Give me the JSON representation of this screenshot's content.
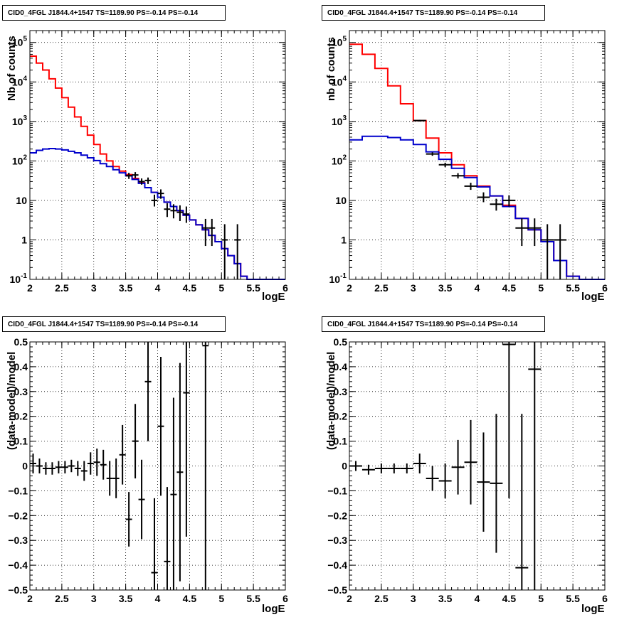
{
  "colors": {
    "data": "#000000",
    "total_model": "#ff0000",
    "source_model": "#0000cc"
  },
  "chart_data": [
    {
      "type": "line",
      "title": "CID0_4FGL J1844.4+1547 TS=1189.90 PS=-0.14 PS=-0.14",
      "xlabel": "logE",
      "ylabel": "Nb of counts",
      "xlim": [
        2,
        6
      ],
      "ylim": [
        0.1,
        200000
      ],
      "yscale": "log",
      "grid": true,
      "x_ticks": [
        "2",
        "2.5",
        "3",
        "3.5",
        "4",
        "4.5",
        "5",
        "5.5",
        "6"
      ],
      "y_ticks": [
        "10^-1",
        "1",
        "10",
        "10^2",
        "10^3",
        "10^4",
        "10^5"
      ],
      "bin_edges": [
        2.0,
        2.1,
        2.2,
        2.3,
        2.4,
        2.5,
        2.6,
        2.7,
        2.8,
        2.9,
        3.0,
        3.1,
        3.2,
        3.3,
        3.4,
        3.5,
        3.6,
        3.7,
        3.8,
        3.9,
        4.0,
        4.1,
        4.2,
        4.3,
        4.4,
        4.5,
        4.6,
        4.7,
        4.8,
        4.9,
        5.0,
        5.1,
        5.2,
        5.3,
        5.4,
        5.5,
        5.6,
        5.7,
        5.8,
        5.9,
        6.0
      ],
      "series": [
        {
          "name": "",
          "color": "#ff0000",
          "style": "step",
          "values": [
            45000,
            30000,
            20000,
            12000,
            7000,
            4000,
            2300,
            1300,
            750,
            450,
            260,
            150,
            100,
            72,
            55,
            45,
            36,
            28,
            21,
            16,
            12,
            9,
            7,
            5.5,
            4.2,
            3.2,
            2.4,
            1.8,
            1.3,
            0.9,
            0.6,
            0.4,
            0.25,
            0.12,
            0.1,
            0.1,
            0.1,
            0.1,
            0.1,
            0.1
          ]
        },
        {
          "name": "",
          "color": "#0000cc",
          "style": "step",
          "values": [
            160,
            185,
            200,
            205,
            200,
            190,
            175,
            160,
            140,
            120,
            102,
            85,
            72,
            60,
            50,
            42,
            34,
            27,
            21,
            16,
            12,
            9,
            7,
            5.5,
            4.2,
            3.2,
            2.4,
            1.8,
            1.3,
            0.9,
            0.6,
            0.4,
            0.25,
            0.12,
            0.1,
            0.1,
            0.1,
            0.1,
            0.1,
            0.1
          ]
        },
        {
          "name": "",
          "color": "#000000",
          "style": "points",
          "points": [
            {
              "x": 3.55,
              "y": 42,
              "lo": 35,
              "hi": 50
            },
            {
              "x": 3.65,
              "y": 44,
              "lo": 37,
              "hi": 52
            },
            {
              "x": 3.75,
              "y": 30,
              "lo": 25,
              "hi": 36
            },
            {
              "x": 3.85,
              "y": 32,
              "lo": 26,
              "hi": 38
            },
            {
              "x": 3.95,
              "y": 10,
              "lo": 7,
              "hi": 14
            },
            {
              "x": 4.05,
              "y": 15,
              "lo": 11,
              "hi": 19
            },
            {
              "x": 4.15,
              "y": 6,
              "lo": 3.8,
              "hi": 8.5
            },
            {
              "x": 4.25,
              "y": 5.5,
              "lo": 3.5,
              "hi": 8
            },
            {
              "x": 4.35,
              "y": 5,
              "lo": 3,
              "hi": 7.5
            },
            {
              "x": 4.45,
              "y": 4.5,
              "lo": 2.7,
              "hi": 7
            },
            {
              "x": 4.75,
              "y": 2,
              "lo": 0.7,
              "hi": 3.4
            },
            {
              "x": 4.85,
              "y": 2,
              "lo": 0.7,
              "hi": 3.4
            },
            {
              "x": 5.05,
              "y": 1,
              "lo": 0.1,
              "hi": 2.5
            },
            {
              "x": 5.25,
              "y": 1,
              "lo": 0.1,
              "hi": 2.5
            }
          ]
        }
      ]
    },
    {
      "type": "line",
      "title": "CID0_4FGL J1844.4+1547 TS=1189.90 PS=-0.14 PS=-0.14",
      "xlabel": "logE",
      "ylabel": "nb of counts",
      "xlim": [
        2,
        6
      ],
      "ylim": [
        0.1,
        200000
      ],
      "yscale": "log",
      "grid": true,
      "x_ticks": [
        "2",
        "2.5",
        "3",
        "3.5",
        "4",
        "4.5",
        "5",
        "5.5",
        "6"
      ],
      "y_ticks": [
        "10^-1",
        "1",
        "10",
        "10^2",
        "10^3",
        "10^4",
        "10^5"
      ],
      "bin_edges": [
        2.0,
        2.2,
        2.4,
        2.6,
        2.8,
        3.0,
        3.2,
        3.4,
        3.6,
        3.8,
        4.0,
        4.2,
        4.4,
        4.6,
        4.8,
        5.0,
        5.2,
        5.4,
        5.6,
        5.8,
        6.0
      ],
      "series": [
        {
          "name": "",
          "color": "#ff0000",
          "style": "step",
          "values": [
            90000,
            50000,
            22000,
            8000,
            2800,
            1050,
            380,
            160,
            80,
            42,
            23,
            13,
            7.5,
            3.5,
            1.8,
            0.9,
            0.3,
            0.12,
            0.1,
            0.1
          ]
        },
        {
          "name": "",
          "color": "#0000cc",
          "style": "step",
          "values": [
            340,
            420,
            420,
            390,
            340,
            260,
            170,
            110,
            65,
            38,
            22,
            13,
            7,
            3.5,
            1.8,
            0.9,
            0.3,
            0.12,
            0.1,
            0.1
          ]
        },
        {
          "name": "",
          "color": "#000000",
          "style": "points",
          "points": [
            {
              "x": 3.1,
              "y": 1050,
              "lo": 1000,
              "hi": 1100
            },
            {
              "x": 3.3,
              "y": 150,
              "lo": 135,
              "hi": 165
            },
            {
              "x": 3.5,
              "y": 80,
              "lo": 70,
              "hi": 90
            },
            {
              "x": 3.7,
              "y": 42,
              "lo": 36,
              "hi": 49
            },
            {
              "x": 3.9,
              "y": 23,
              "lo": 18.5,
              "hi": 28
            },
            {
              "x": 4.1,
              "y": 12,
              "lo": 9,
              "hi": 16
            },
            {
              "x": 4.3,
              "y": 8,
              "lo": 5.5,
              "hi": 11
            },
            {
              "x": 4.5,
              "y": 10,
              "lo": 7,
              "hi": 13.5
            },
            {
              "x": 4.7,
              "y": 2,
              "lo": 0.7,
              "hi": 3.5
            },
            {
              "x": 4.9,
              "y": 2,
              "lo": 0.7,
              "hi": 3.5
            },
            {
              "x": 5.1,
              "y": 1,
              "lo": 0.1,
              "hi": 2.5
            },
            {
              "x": 5.3,
              "y": 1,
              "lo": 0.1,
              "hi": 2.5
            }
          ]
        }
      ]
    },
    {
      "type": "scatter",
      "title": "CID0_4FGL J1844.4+1547 TS=1189.90 PS=-0.14 PS=-0.14",
      "xlabel": "logE",
      "ylabel": "(data-model)/model",
      "xlim": [
        2,
        6
      ],
      "ylim": [
        -0.5,
        0.5
      ],
      "grid": true,
      "x_ticks": [
        "2",
        "2.5",
        "3",
        "3.5",
        "4",
        "4.5",
        "5",
        "5.5",
        "6"
      ],
      "y_ticks": [
        "−0.5",
        "−0.4",
        "−0.3",
        "−0.2",
        "−0.1",
        "0",
        "0.1",
        "0.2",
        "0.3",
        "0.4",
        "0.5"
      ],
      "series": [
        {
          "name": "",
          "color": "#000000",
          "bin_width": 0.1,
          "points": [
            {
              "x": 2.05,
              "y": 0.01,
              "err": 0.04
            },
            {
              "x": 2.15,
              "y": 0.0,
              "err": 0.03
            },
            {
              "x": 2.25,
              "y": -0.01,
              "err": 0.025
            },
            {
              "x": 2.35,
              "y": -0.01,
              "err": 0.025
            },
            {
              "x": 2.45,
              "y": -0.005,
              "err": 0.025
            },
            {
              "x": 2.55,
              "y": -0.005,
              "err": 0.025
            },
            {
              "x": 2.65,
              "y": 0.0,
              "err": 0.025
            },
            {
              "x": 2.75,
              "y": -0.01,
              "err": 0.03
            },
            {
              "x": 2.85,
              "y": -0.02,
              "err": 0.04
            },
            {
              "x": 2.95,
              "y": 0.01,
              "err": 0.045
            },
            {
              "x": 3.05,
              "y": 0.015,
              "err": 0.055
            },
            {
              "x": 3.15,
              "y": 0.005,
              "err": 0.06
            },
            {
              "x": 3.25,
              "y": -0.05,
              "err": 0.07
            },
            {
              "x": 3.35,
              "y": -0.05,
              "err": 0.08
            },
            {
              "x": 3.45,
              "y": 0.045,
              "err": 0.12
            },
            {
              "x": 3.55,
              "y": -0.215,
              "err": 0.11
            },
            {
              "x": 3.65,
              "y": 0.1,
              "err": 0.15
            },
            {
              "x": 3.75,
              "y": -0.135,
              "err": 0.16
            },
            {
              "x": 3.85,
              "y": 0.34,
              "err": 0.24
            },
            {
              "x": 3.95,
              "y": -0.43,
              "err": 0.3
            },
            {
              "x": 4.05,
              "y": 0.16,
              "err": 0.28
            },
            {
              "x": 4.15,
              "y": -0.385,
              "err": 0.3
            },
            {
              "x": 4.25,
              "y": -0.115,
              "err": 0.39
            },
            {
              "x": 4.35,
              "y": -0.025,
              "err": 0.44
            },
            {
              "x": 4.45,
              "y": 0.295,
              "err": 0.58
            },
            {
              "x": 4.75,
              "y": 0.485,
              "err": 1.2
            }
          ]
        }
      ]
    },
    {
      "type": "scatter",
      "title": "CID0_4FGL J1844.4+1547 TS=1189.90 PS=-0.14 PS=-0.14",
      "xlabel": "logE",
      "ylabel": "(data-model)/model",
      "xlim": [
        2,
        6
      ],
      "ylim": [
        -0.5,
        0.5
      ],
      "grid": true,
      "x_ticks": [
        "2",
        "2.5",
        "3",
        "3.5",
        "4",
        "4.5",
        "5",
        "5.5",
        "6"
      ],
      "y_ticks": [
        "−0.5",
        "−0.4",
        "−0.3",
        "−0.2",
        "−0.1",
        "0",
        "0.1",
        "0.2",
        "0.3",
        "0.4",
        "0.5"
      ],
      "series": [
        {
          "name": "",
          "color": "#000000",
          "bin_width": 0.2,
          "points": [
            {
              "x": 2.1,
              "y": 0.0,
              "err": 0.02
            },
            {
              "x": 2.3,
              "y": -0.015,
              "err": 0.02
            },
            {
              "x": 2.5,
              "y": -0.01,
              "err": 0.02
            },
            {
              "x": 2.7,
              "y": -0.01,
              "err": 0.02
            },
            {
              "x": 2.9,
              "y": -0.01,
              "err": 0.02
            },
            {
              "x": 3.1,
              "y": 0.01,
              "err": 0.04
            },
            {
              "x": 3.3,
              "y": -0.05,
              "err": 0.05
            },
            {
              "x": 3.5,
              "y": -0.06,
              "err": 0.07
            },
            {
              "x": 3.7,
              "y": -0.005,
              "err": 0.11
            },
            {
              "x": 3.9,
              "y": 0.015,
              "err": 0.17
            },
            {
              "x": 4.1,
              "y": -0.065,
              "err": 0.2
            },
            {
              "x": 4.3,
              "y": -0.07,
              "err": 0.28
            },
            {
              "x": 4.5,
              "y": 0.49,
              "err": 0.62
            },
            {
              "x": 4.7,
              "y": -0.41,
              "err": 0.62
            },
            {
              "x": 4.9,
              "y": 0.39,
              "err": 0.95
            }
          ]
        }
      ]
    }
  ]
}
